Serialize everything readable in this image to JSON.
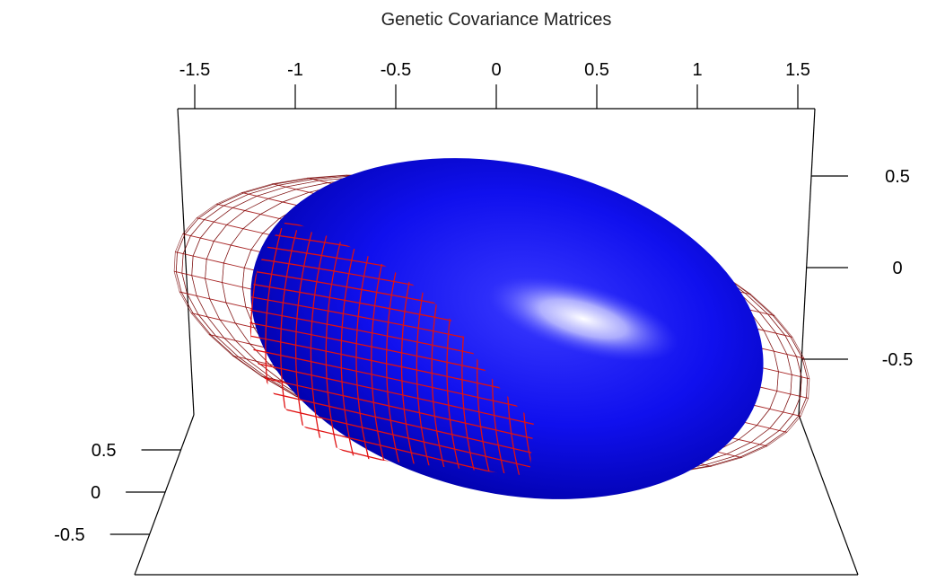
{
  "chart_data": {
    "type": "surface3d",
    "title": "Genetic Covariance Matrices",
    "xlabel": "",
    "ylabel": "",
    "zlabel": "",
    "x_axis": {
      "ticks": [
        "-1.5",
        "-1",
        "-0.5",
        "0",
        "0.5",
        "1",
        "1.5"
      ],
      "range": [
        -1.5,
        1.5
      ]
    },
    "z_axis_right": {
      "ticks": [
        "0.5",
        "0",
        "-0.5"
      ],
      "range": [
        -0.5,
        0.5
      ]
    },
    "y_axis_left": {
      "ticks": [
        "0.5",
        "0",
        "-0.5"
      ],
      "range": [
        -0.5,
        0.5
      ]
    },
    "grid": false,
    "series": [
      {
        "style": "wireframe",
        "color": "#a01010",
        "semi_axes": [
          1.6,
          0.55,
          0.45
        ]
      },
      {
        "style": "solid",
        "color": "#0000e0",
        "semi_axes": [
          1.35,
          0.75,
          0.55
        ]
      }
    ]
  }
}
